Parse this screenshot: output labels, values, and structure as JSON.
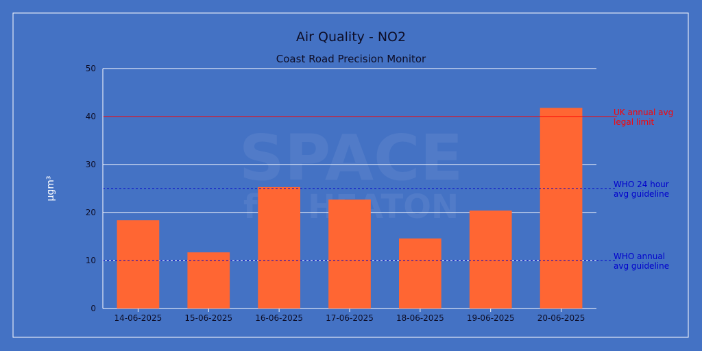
{
  "chart_data": {
    "type": "bar",
    "title": "Air Quality - NO2",
    "subtitle": "Coast Road Precision Monitor",
    "ylabel": "µgm³",
    "xlabel": "",
    "ylim": [
      0,
      50
    ],
    "yticks": [
      0,
      10,
      20,
      30,
      40,
      50
    ],
    "grid": true,
    "categories": [
      "14-06-2025",
      "15-06-2025",
      "16-06-2025",
      "17-06-2025",
      "18-06-2025",
      "19-06-2025",
      "20-06-2025"
    ],
    "values": [
      18.4,
      11.7,
      25.3,
      22.7,
      14.6,
      20.4,
      41.8
    ],
    "bar_color": "#ff6633",
    "reference_lines": [
      {
        "name": "uk-annual-limit",
        "value": 40,
        "style": "solid",
        "color": "#ff0000",
        "label_lines": [
          "UK annual avg",
          "legal limit"
        ]
      },
      {
        "name": "who-24h-guideline",
        "value": 25,
        "style": "dashed",
        "color": "#0000cc",
        "label_lines": [
          "WHO 24 hour",
          "avg guideline"
        ]
      },
      {
        "name": "who-annual-guideline",
        "value": 10,
        "style": "dashed",
        "color": "#0000cc",
        "label_lines": [
          "WHO annual",
          "avg guideline"
        ]
      }
    ]
  },
  "watermark": {
    "line1": "SPACE",
    "line2": "for HEATON"
  }
}
